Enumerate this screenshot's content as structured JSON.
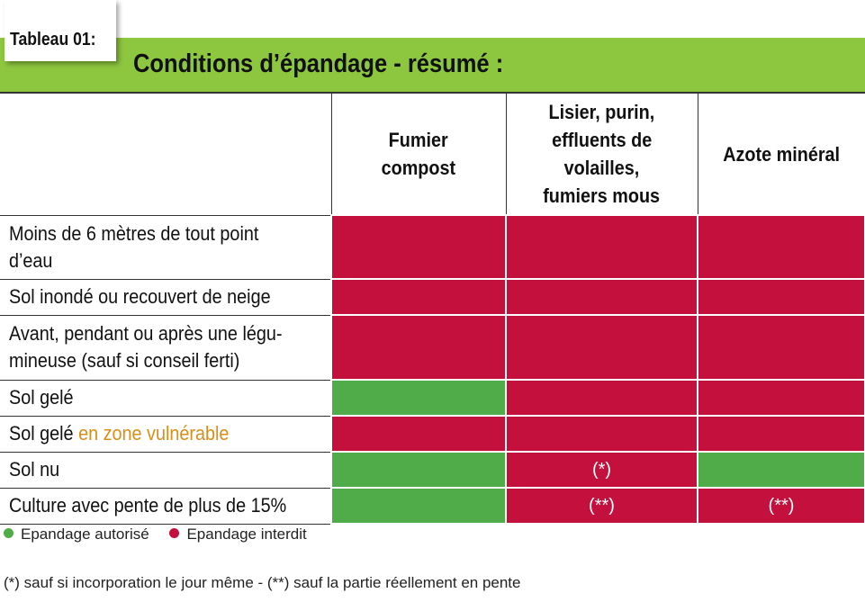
{
  "tag": "Tableau 01:",
  "title": "Conditions d’épandage - résumé :",
  "columns": [
    {
      "line1": "Fumier",
      "line2": "compost"
    },
    {
      "line1": "Lisier, purin,",
      "line2": "effluents de",
      "line3": "volailles,",
      "line4": "fumiers mous"
    },
    {
      "line1": "Azote minéral"
    }
  ],
  "rows": [
    {
      "label1": "Moins de 6 mètres de tout point",
      "label2": "d’eau",
      "cells": [
        "interdit",
        "interdit",
        "interdit"
      ],
      "notes": [
        "",
        "",
        ""
      ]
    },
    {
      "label1": "Sol inondé ou recouvert de neige",
      "cells": [
        "interdit",
        "interdit",
        "interdit"
      ],
      "notes": [
        "",
        "",
        ""
      ]
    },
    {
      "label1": "Avant, pendant ou après une légu-",
      "label2": "mineuse (sauf si conseil ferti)",
      "cells": [
        "interdit",
        "interdit",
        "interdit"
      ],
      "notes": [
        "",
        "",
        ""
      ]
    },
    {
      "label1": "Sol gelé",
      "cells": [
        "autorisé",
        "interdit",
        "interdit"
      ],
      "notes": [
        "",
        "",
        ""
      ]
    },
    {
      "label1": "Sol gelé",
      "label_highlight": "en zone vulnérable",
      "cells": [
        "interdit",
        "interdit",
        "interdit"
      ],
      "notes": [
        "",
        "",
        ""
      ]
    },
    {
      "label1": "Sol nu",
      "cells": [
        "autorisé",
        "interdit",
        "autorisé"
      ],
      "notes": [
        "",
        "(*)",
        ""
      ]
    },
    {
      "label1": "Culture avec pente de plus de 15%",
      "cells": [
        "autorisé",
        "interdit",
        "interdit"
      ],
      "notes": [
        "",
        "(**)",
        "(**)"
      ]
    }
  ],
  "legend": {
    "allowed": "Epandage autorisé",
    "forbidden": "Epandage interdit"
  },
  "footnote": "(*) sauf si incorporation le jour même - (**) sauf la partie réellement en pente",
  "colors": {
    "banner": "#8dc63f",
    "allowed": "#4fac48",
    "forbidden": "#c4103d",
    "highlight": "#d98e1a"
  }
}
